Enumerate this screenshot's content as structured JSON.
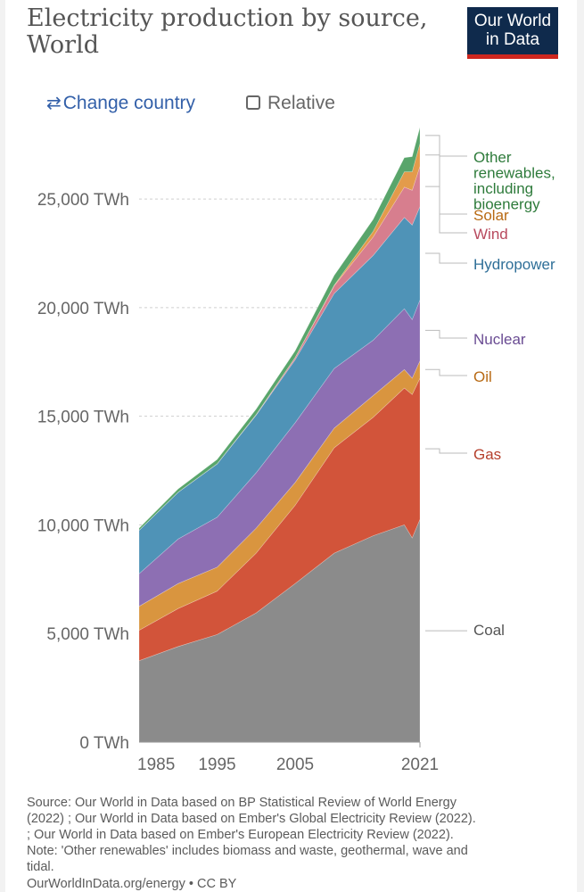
{
  "header": {
    "title": "Electricity production by source, World",
    "logo_line1": "Our World",
    "logo_line2": "in Data"
  },
  "controls": {
    "change_country_icon": "⇄",
    "change_country_label": "Change country",
    "relative_label": "Relative"
  },
  "colors": {
    "Coal": "#8b8b8b",
    "Gas": "#d2543a",
    "Oil": "#d9953f",
    "Nuclear": "#8d6fb3",
    "Hydropower": "#4f93b7",
    "Wind": "#d77e8e",
    "Solar": "#e39b4b",
    "Other renewables, including bioenergy": "#59a56b",
    "label_Coal": "#555555",
    "label_Gas": "#b53f2c",
    "label_Oil": "#b86a14",
    "label_Nuclear": "#6a4c93",
    "label_Hydropower": "#2f6f98",
    "label_Wind": "#b84a5e",
    "label_Solar": "#b86a14",
    "label_Other": "#2e7b3b"
  },
  "chart_data": {
    "type": "area",
    "stacked": true,
    "title": "Electricity production by source, World",
    "xlabel": "",
    "ylabel": "",
    "xlim": [
      1985,
      2021
    ],
    "ylim": [
      0,
      28000
    ],
    "grid": true,
    "y_ticks": [
      {
        "value": 0,
        "label": "0 TWh"
      },
      {
        "value": 5000,
        "label": "5,000 TWh"
      },
      {
        "value": 10000,
        "label": "10,000 TWh"
      },
      {
        "value": 15000,
        "label": "15,000 TWh"
      },
      {
        "value": 20000,
        "label": "20,000 TWh"
      },
      {
        "value": 25000,
        "label": "25,000 TWh"
      }
    ],
    "x_ticks": [
      {
        "value": 1985,
        "label": "1985"
      },
      {
        "value": 1995,
        "label": "1995"
      },
      {
        "value": 2005,
        "label": "2005"
      },
      {
        "value": 2021,
        "label": "2021"
      }
    ],
    "x": [
      1985,
      1990,
      1995,
      2000,
      2005,
      2010,
      2015,
      2019,
      2020,
      2021
    ],
    "series": [
      {
        "name": "Coal",
        "legend": [
          "Coal"
        ],
        "values": [
          3750,
          4400,
          4950,
          5950,
          7300,
          8700,
          9500,
          10000,
          9400,
          10250
        ]
      },
      {
        "name": "Gas",
        "legend": [
          "Gas"
        ],
        "values": [
          1400,
          1750,
          2000,
          2750,
          3600,
          4850,
          5450,
          6300,
          6600,
          6500
        ]
      },
      {
        "name": "Oil",
        "legend": [
          "Oil"
        ],
        "values": [
          1100,
          1150,
          1100,
          1150,
          1050,
          900,
          1000,
          850,
          750,
          800
        ]
      },
      {
        "name": "Nuclear",
        "legend": [
          "Nuclear"
        ],
        "values": [
          1500,
          2050,
          2300,
          2550,
          2750,
          2750,
          2550,
          2800,
          2700,
          2800
        ]
      },
      {
        "name": "Hydropower",
        "legend": [
          "Hydropower"
        ],
        "values": [
          2000,
          2150,
          2450,
          2650,
          2900,
          3450,
          3900,
          4200,
          4350,
          4300
        ]
      },
      {
        "name": "Wind",
        "legend": [
          "Wind"
        ],
        "values": [
          0,
          5,
          10,
          30,
          100,
          350,
          850,
          1400,
          1600,
          1850
        ]
      },
      {
        "name": "Solar",
        "legend": [
          "Solar"
        ],
        "values": [
          0,
          0,
          0,
          0,
          5,
          30,
          260,
          700,
          850,
          1050
        ]
      },
      {
        "name": "Other renewables, including bioenergy",
        "legend": [
          "Other",
          "renewables,",
          "including",
          "bioenergy"
        ],
        "values": [
          100,
          150,
          200,
          250,
          300,
          450,
          550,
          650,
          700,
          750
        ]
      }
    ]
  },
  "footer": {
    "source_lines": [
      "Source: Our World in Data based on BP Statistical Review of World Energy",
      "(2022) ; Our World in Data based on Ember's Global Electricity Review (2022).",
      "; Our World in Data based on Ember's European Electricity Review (2022).",
      "Note: 'Other renewables' includes biomass and waste, geothermal, wave and",
      "tidal."
    ],
    "url": "OurWorldInData.org/energy • CC BY"
  }
}
